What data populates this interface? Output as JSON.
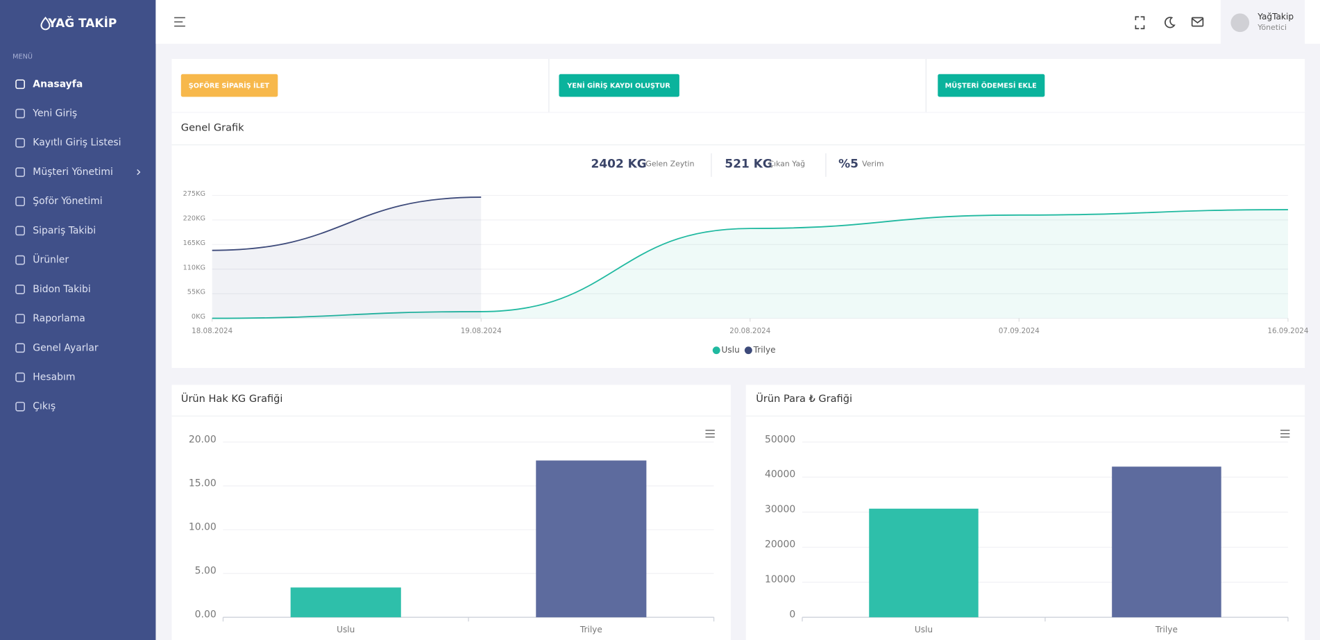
{
  "sidebar": {
    "brand": "YAĞ TAKİP",
    "section": "MENÜ",
    "menu": [
      "Anasayfa",
      "Yeni Giriş",
      "Kayıtlı Giriş Listesi",
      "Müşteri Yönetimi",
      "Şoför Yönetimi",
      "Sipariş Takibi",
      "Ürünler",
      "Bidon Takibi",
      "Raporlama",
      "Genel Ayarlar",
      "Hesabım",
      "Çıkış"
    ]
  },
  "header": {
    "user_name": "YağTakip",
    "user_role": "Yönetici"
  },
  "actions": [
    "ŞOFÖRE SİPARİŞ İLET",
    "YENİ GİRİŞ KAYDI OLUŞTUR",
    "MÜŞTERİ ÖDEMESİ EKLE"
  ],
  "summary": {
    "title": "Genel Grafik",
    "stats": [
      {
        "value": "2402 KG",
        "label": "Gelen Zeytin"
      },
      {
        "value": "521 KG",
        "label": "Çıkan Yağ"
      },
      {
        "value": "%5",
        "label": "Verim"
      }
    ]
  },
  "chart_data": [
    {
      "type": "area",
      "categories": [
        "18.08.2024",
        "19.08.2024",
        "20.08.2024",
        "07.09.2024",
        "16.09.2024"
      ],
      "series": [
        {
          "name": "Uslu",
          "color": "#20b9a0",
          "values": [
            0,
            15,
            201,
            231,
            243
          ]
        },
        {
          "name": "Trilye",
          "color": "#3d4a7a",
          "values": [
            152,
            271,
            null,
            null,
            null
          ]
        }
      ],
      "ylim": [
        0,
        275
      ],
      "yticks": [
        {
          "value": 0,
          "label": "0KG"
        },
        {
          "value": 55,
          "label": "55KG"
        },
        {
          "value": 110,
          "label": "110KG"
        },
        {
          "value": 165,
          "label": "165KG"
        },
        {
          "value": 220,
          "label": "220KG"
        },
        {
          "value": 275,
          "label": "275KG"
        }
      ],
      "grid": true,
      "legend": "bottom"
    },
    {
      "type": "bar",
      "title": "Ürün Hak KG Grafiği",
      "categories": [
        "Uslu",
        "Trilye"
      ],
      "values": [
        3.4,
        17.9
      ],
      "colors": [
        "#2ebfaa",
        "#5d6b9e"
      ],
      "ylim": [
        0,
        20
      ],
      "yticks": [
        {
          "value": 0,
          "label": "0.00"
        },
        {
          "value": 5,
          "label": "5.00"
        },
        {
          "value": 10,
          "label": "10.00"
        },
        {
          "value": 15,
          "label": "15.00"
        },
        {
          "value": 20,
          "label": "20.00"
        }
      ],
      "grid": true
    },
    {
      "type": "bar",
      "title": "Ürün Para ₺ Grafiği",
      "categories": [
        "Uslu",
        "Trilye"
      ],
      "values": [
        31000,
        43000
      ],
      "colors": [
        "#2ebfaa",
        "#5d6b9e"
      ],
      "ylim": [
        0,
        50000
      ],
      "yticks": [
        0,
        10000,
        20000,
        30000,
        40000,
        50000
      ],
      "grid": true
    }
  ]
}
